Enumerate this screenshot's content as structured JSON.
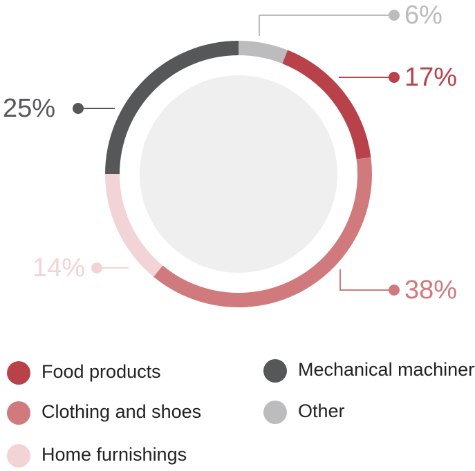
{
  "chart_data": {
    "type": "donut",
    "categories": [
      "Other",
      "Food products",
      "Clothing and shoes",
      "Home furnishings",
      "Mechanical machinery"
    ],
    "values": [
      6,
      17,
      38,
      14,
      25
    ],
    "value_labels": [
      "6%",
      "17%",
      "38%",
      "14%",
      "25%"
    ],
    "colors": [
      "#bcbcbe",
      "#b9424a",
      "#d07a7e",
      "#f2d4d6",
      "#555759"
    ]
  }
}
